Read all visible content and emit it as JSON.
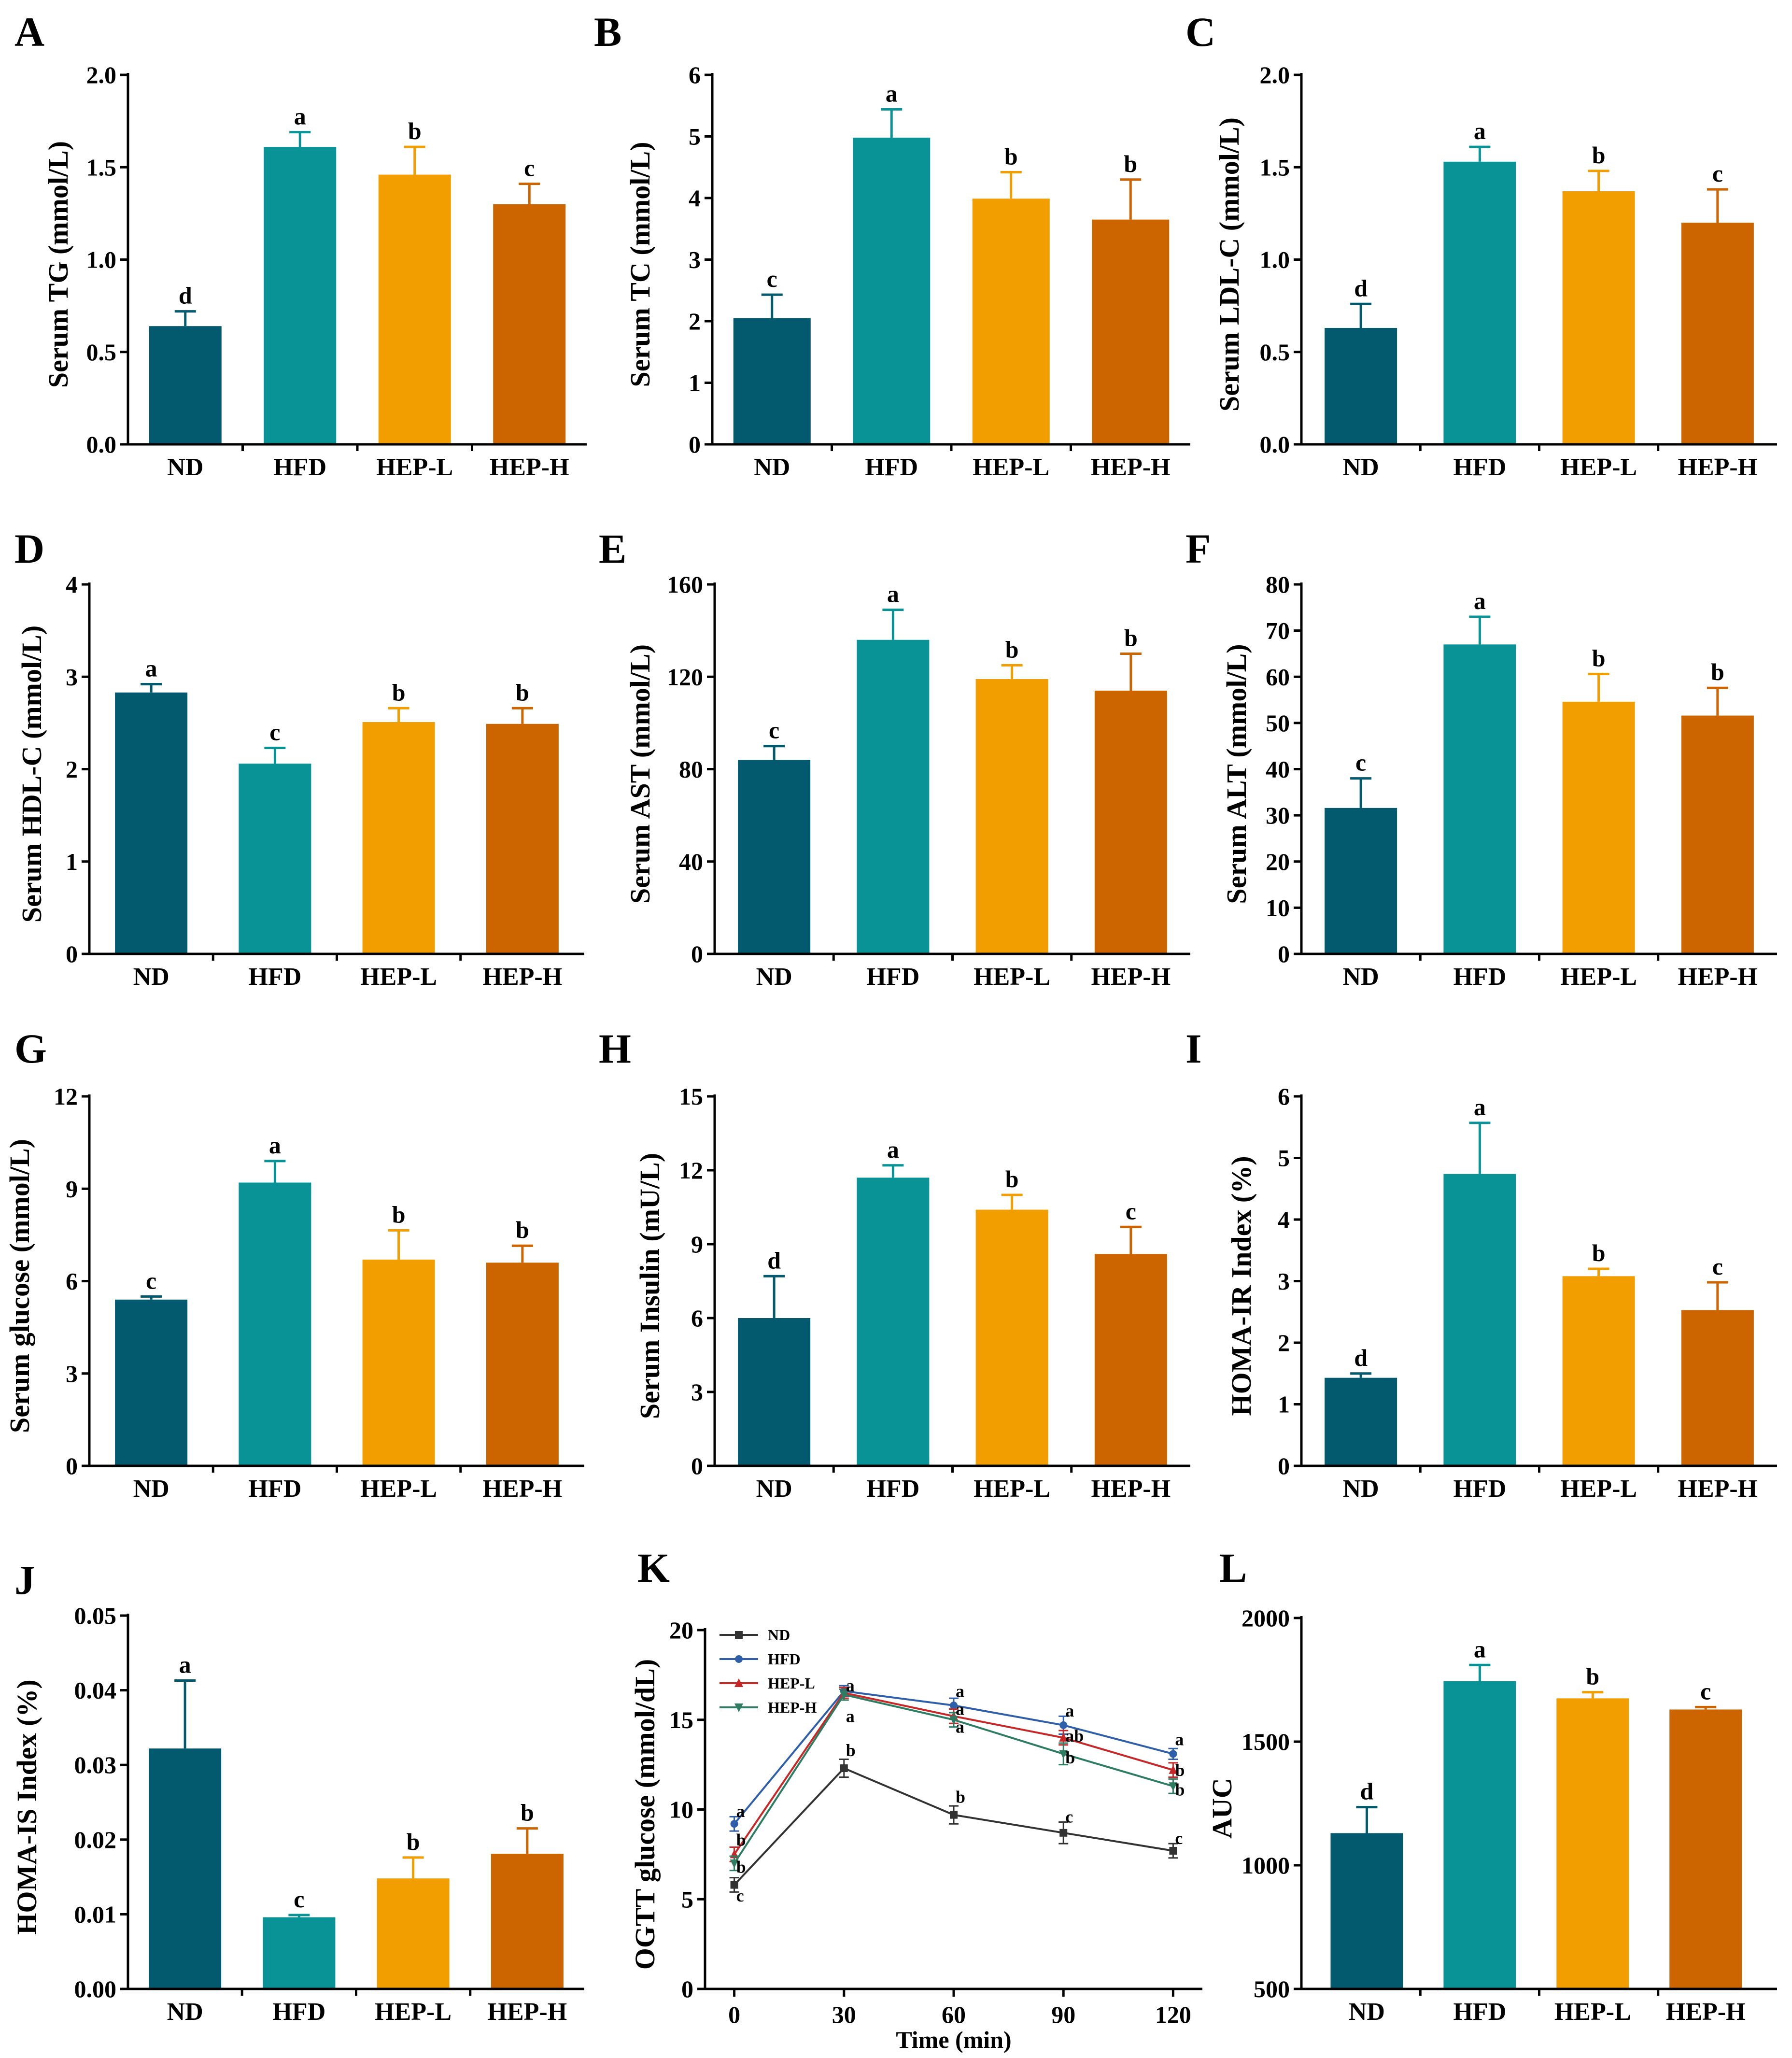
{
  "colors": {
    "ND": "#03596e",
    "HFD": "#0a9396",
    "HEP-L": "#f29e00",
    "HEP-H": "#cc6400"
  },
  "chart_data": [
    {
      "id": "A",
      "type": "bar",
      "panel_label": "A",
      "ylabel": "Serum TG (mmol/L)",
      "categories": [
        "ND",
        "HFD",
        "HEP-L",
        "HEP-H"
      ],
      "values": [
        0.64,
        1.61,
        1.46,
        1.3
      ],
      "errors": [
        0.08,
        0.08,
        0.15,
        0.11
      ],
      "sig": [
        "d",
        "a",
        "b",
        "c"
      ],
      "ylim": [
        0,
        2.0
      ],
      "yticks": [
        0,
        0.5,
        1.0,
        1.5,
        2.0
      ],
      "ytick_labels": [
        "0.0",
        "0.5",
        "1.0",
        "1.5",
        "2.0"
      ]
    },
    {
      "id": "B",
      "type": "bar",
      "panel_label": "B",
      "ylabel": "Serum TC (mmol/L)",
      "categories": [
        "ND",
        "HFD",
        "HEP-L",
        "HEP-H"
      ],
      "values": [
        2.05,
        4.98,
        3.99,
        3.65
      ],
      "errors": [
        0.38,
        0.46,
        0.43,
        0.65
      ],
      "sig": [
        "c",
        "a",
        "b",
        "b"
      ],
      "ylim": [
        0,
        6
      ],
      "yticks": [
        0,
        1,
        2,
        3,
        4,
        5,
        6
      ],
      "ytick_labels": [
        "0",
        "1",
        "2",
        "3",
        "4",
        "5",
        "6"
      ]
    },
    {
      "id": "C",
      "type": "bar",
      "panel_label": "C",
      "ylabel": "Serum LDL-C (mmol/L)",
      "categories": [
        "ND",
        "HFD",
        "HEP-L",
        "HEP-H"
      ],
      "values": [
        0.63,
        1.53,
        1.37,
        1.2
      ],
      "errors": [
        0.13,
        0.08,
        0.11,
        0.18
      ],
      "sig": [
        "d",
        "a",
        "b",
        "c"
      ],
      "ylim": [
        0,
        2.0
      ],
      "yticks": [
        0,
        0.5,
        1.0,
        1.5,
        2.0
      ],
      "ytick_labels": [
        "0.0",
        "0.5",
        "1.0",
        "1.5",
        "2.0"
      ]
    },
    {
      "id": "D",
      "type": "bar",
      "panel_label": "D",
      "ylabel": "Serum HDL-C (mmol/L)",
      "categories": [
        "ND",
        "HFD",
        "HEP-L",
        "HEP-H"
      ],
      "values": [
        2.83,
        2.06,
        2.51,
        2.49
      ],
      "errors": [
        0.09,
        0.17,
        0.15,
        0.17
      ],
      "sig": [
        "a",
        "c",
        "b",
        "b"
      ],
      "ylim": [
        0,
        4
      ],
      "yticks": [
        0,
        1,
        2,
        3,
        4
      ],
      "ytick_labels": [
        "0",
        "1",
        "2",
        "3",
        "4"
      ]
    },
    {
      "id": "E",
      "type": "bar",
      "panel_label": "E",
      "ylabel": "Serum AST (mmol/L)",
      "categories": [
        "ND",
        "HFD",
        "HEP-L",
        "HEP-H"
      ],
      "values": [
        84,
        136,
        119,
        114
      ],
      "errors": [
        6,
        13,
        6,
        16
      ],
      "sig": [
        "c",
        "a",
        "b",
        "b"
      ],
      "ylim": [
        0,
        160
      ],
      "yticks": [
        0,
        40,
        80,
        120,
        160
      ],
      "ytick_labels": [
        "0",
        "40",
        "80",
        "120",
        "160"
      ]
    },
    {
      "id": "F",
      "type": "bar",
      "panel_label": "F",
      "ylabel": "Serum ALT (mmol/L)",
      "categories": [
        "ND",
        "HFD",
        "HEP-L",
        "HEP-H"
      ],
      "values": [
        31.6,
        67,
        54.6,
        51.6
      ],
      "errors": [
        6.4,
        6,
        6,
        6
      ],
      "sig": [
        "c",
        "a",
        "b",
        "b"
      ],
      "ylim": [
        0,
        80
      ],
      "yticks": [
        0,
        10,
        20,
        30,
        40,
        50,
        60,
        70,
        80
      ],
      "ytick_labels": [
        "0",
        "10",
        "20",
        "30",
        "40",
        "50",
        "60",
        "70",
        "80"
      ]
    },
    {
      "id": "G",
      "type": "bar",
      "panel_label": "G",
      "ylabel": "Serum glucose (mmol/L)",
      "categories": [
        "ND",
        "HFD",
        "HEP-L",
        "HEP-H"
      ],
      "values": [
        5.4,
        9.2,
        6.7,
        6.6
      ],
      "errors": [
        0.1,
        0.7,
        0.95,
        0.55
      ],
      "sig": [
        "c",
        "a",
        "b",
        "b"
      ],
      "ylim": [
        0,
        12
      ],
      "yticks": [
        0,
        3,
        6,
        9,
        12
      ],
      "ytick_labels": [
        "0",
        "3",
        "6",
        "9",
        "12"
      ]
    },
    {
      "id": "H",
      "type": "bar",
      "panel_label": "H",
      "ylabel": "Serum Insulin (mU/L)",
      "categories": [
        "ND",
        "HFD",
        "HEP-L",
        "HEP-H"
      ],
      "values": [
        6.0,
        11.7,
        10.4,
        8.6
      ],
      "errors": [
        1.7,
        0.5,
        0.6,
        1.1
      ],
      "sig": [
        "d",
        "a",
        "b",
        "c"
      ],
      "ylim": [
        0,
        15
      ],
      "yticks": [
        0,
        3,
        6,
        9,
        12,
        15
      ],
      "ytick_labels": [
        "0",
        "3",
        "6",
        "9",
        "12",
        "15"
      ]
    },
    {
      "id": "I",
      "type": "bar",
      "panel_label": "I",
      "ylabel": "HOMA-IR Index (%)",
      "categories": [
        "ND",
        "HFD",
        "HEP-L",
        "HEP-H"
      ],
      "values": [
        1.43,
        4.74,
        3.08,
        2.53
      ],
      "errors": [
        0.07,
        0.83,
        0.12,
        0.45
      ],
      "sig": [
        "d",
        "a",
        "b",
        "c"
      ],
      "ylim": [
        0,
        6
      ],
      "yticks": [
        0,
        1,
        2,
        3,
        4,
        5,
        6
      ],
      "ytick_labels": [
        "0",
        "1",
        "2",
        "3",
        "4",
        "5",
        "6"
      ]
    },
    {
      "id": "J",
      "type": "bar",
      "panel_label": "J",
      "ylabel": "HOMA-IS Index (%)",
      "categories": [
        "ND",
        "HFD",
        "HEP-L",
        "HEP-H"
      ],
      "values": [
        0.0322,
        0.0096,
        0.0148,
        0.0181
      ],
      "errors": [
        0.0091,
        0.0003,
        0.0028,
        0.0034
      ],
      "sig": [
        "a",
        "c",
        "b",
        "b"
      ],
      "ylim": [
        0,
        0.05
      ],
      "yticks": [
        0,
        0.01,
        0.02,
        0.03,
        0.04,
        0.05
      ],
      "ytick_labels": [
        "0.00",
        "0.01",
        "0.02",
        "0.03",
        "0.04",
        "0.05"
      ]
    },
    {
      "id": "K",
      "type": "line",
      "panel_label": "K",
      "ylabel": "OGTT glucose (mmol/dL)",
      "xlabel": "Time (min)",
      "x": [
        0,
        30,
        60,
        90,
        120
      ],
      "xlim": [
        -8,
        128
      ],
      "xticks": [
        0,
        30,
        60,
        90,
        120
      ],
      "xtick_labels": [
        "0",
        "30",
        "60",
        "90",
        "120"
      ],
      "ylim": [
        0,
        20
      ],
      "yticks": [
        0,
        5,
        10,
        15,
        20
      ],
      "ytick_labels": [
        "0",
        "5",
        "10",
        "15",
        "20"
      ],
      "series": [
        {
          "name": "ND",
          "color": "#333333",
          "marker": "square",
          "values": [
            5.8,
            12.3,
            9.7,
            8.7,
            7.7
          ],
          "errors": [
            0.4,
            0.5,
            0.5,
            0.6,
            0.4
          ]
        },
        {
          "name": "HFD",
          "color": "#2f5fa8",
          "marker": "circle",
          "values": [
            9.2,
            16.6,
            15.8,
            14.7,
            13.1
          ],
          "errors": [
            0.4,
            0.3,
            0.4,
            0.5,
            0.3
          ]
        },
        {
          "name": "HEP-L",
          "color": "#c62828",
          "marker": "triangle-up",
          "values": [
            7.5,
            16.5,
            15.2,
            14.0,
            12.2
          ],
          "errors": [
            0.4,
            0.3,
            0.4,
            0.4,
            0.4
          ]
        },
        {
          "name": "HEP-H",
          "color": "#2e7d62",
          "marker": "triangle-down",
          "values": [
            7.0,
            16.4,
            15.0,
            13.1,
            11.3
          ],
          "errors": [
            0.4,
            0.3,
            0.4,
            0.6,
            0.4
          ]
        }
      ],
      "annotations": [
        {
          "text": "a",
          "x": 0,
          "y": 9.9
        },
        {
          "text": "b",
          "x": 0,
          "y": 8.3
        },
        {
          "text": "b",
          "x": 0,
          "y": 6.8
        },
        {
          "text": "c",
          "x": 0,
          "y": 5.2
        },
        {
          "text": "a",
          "x": 30,
          "y": 16.9
        },
        {
          "text": "a",
          "x": 30,
          "y": 15.2
        },
        {
          "text": "b",
          "x": 30,
          "y": 13.3
        },
        {
          "text": "a",
          "x": 60,
          "y": 16.6
        },
        {
          "text": "a",
          "x": 60,
          "y": 15.6
        },
        {
          "text": "a",
          "x": 60,
          "y": 14.6
        },
        {
          "text": "b",
          "x": 60,
          "y": 10.7
        },
        {
          "text": "a",
          "x": 90,
          "y": 15.5
        },
        {
          "text": "ab",
          "x": 90,
          "y": 14.1
        },
        {
          "text": "b",
          "x": 90,
          "y": 12.9
        },
        {
          "text": "c",
          "x": 90,
          "y": 9.6
        },
        {
          "text": "a",
          "x": 120,
          "y": 13.9
        },
        {
          "text": "b",
          "x": 120,
          "y": 12.2
        },
        {
          "text": "b",
          "x": 120,
          "y": 11.1
        },
        {
          "text": "c",
          "x": 120,
          "y": 8.4
        }
      ]
    },
    {
      "id": "L",
      "type": "bar",
      "panel_label": "L",
      "ylabel": "AUC",
      "categories": [
        "ND",
        "HFD",
        "HEP-L",
        "HEP-H"
      ],
      "values": [
        1130,
        1745,
        1675,
        1630
      ],
      "errors": [
        105,
        65,
        25,
        10
      ],
      "sig": [
        "d",
        "a",
        "b",
        "c"
      ],
      "ylim": [
        500,
        2000
      ],
      "yticks": [
        500,
        1000,
        1500,
        2000
      ],
      "ytick_labels": [
        "500",
        "1000",
        "1500",
        "2000"
      ]
    }
  ]
}
